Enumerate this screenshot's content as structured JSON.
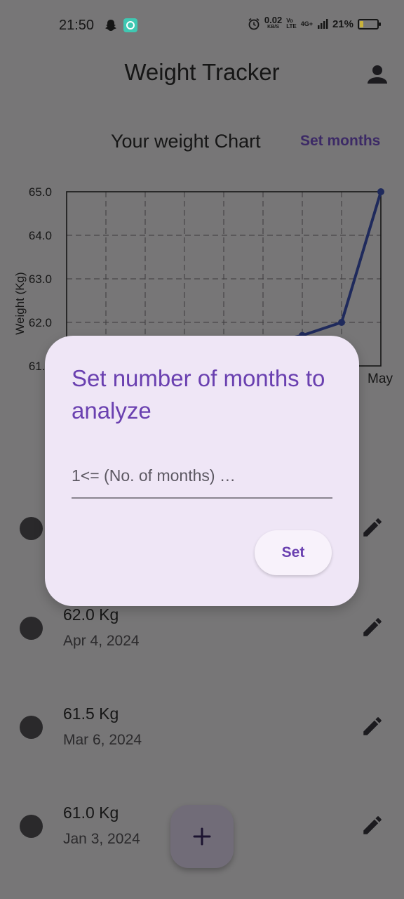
{
  "status_bar": {
    "time": "21:50",
    "data_speed": "0.02",
    "data_speed_unit": "KB/S",
    "volte_top": "Vo",
    "volte_bottom": "LTE",
    "network": "4G+",
    "battery": "21%",
    "battery_level": 0.21,
    "icons": [
      "snapchat-icon",
      "app-notification-icon",
      "alarm-icon",
      "signal-icon",
      "battery-icon"
    ]
  },
  "app_bar": {
    "title": "Weight Tracker",
    "account_icon": "account-icon"
  },
  "chart_header": {
    "title": "Your weight Chart",
    "action": "Set months"
  },
  "chart_data": {
    "type": "line",
    "ylabel": "Weight (Kg)",
    "y_ticks": [
      "65.0",
      "64.0",
      "63.0",
      "62.0",
      "61.0"
    ],
    "ylim": [
      61.0,
      65.0
    ],
    "x_tick_visible": "May",
    "grid": true,
    "line_color": "#1f2a5c",
    "series": [
      {
        "x": [
          5,
          6,
          7,
          8
        ],
        "values": [
          61.5,
          61.7,
          62.0,
          65.0
        ]
      }
    ]
  },
  "entries": [
    {
      "weight": "",
      "date": ""
    },
    {
      "weight": "62.0 Kg",
      "date": "Apr 4, 2024"
    },
    {
      "weight": "61.5 Kg",
      "date": "Mar 6, 2024"
    },
    {
      "weight": "61.0 Kg",
      "date": "Jan 3, 2024"
    }
  ],
  "fab": {
    "icon": "plus-icon"
  },
  "dialog": {
    "title": "Set number of months to analyze",
    "input_placeholder": "1<= (No. of months) …",
    "input_value": "",
    "button": "Set"
  },
  "colors": {
    "scrim_background": "#777677",
    "dialog_background": "#efe6f6",
    "accent": "#6a40b0",
    "chart_line": "#1f2a5c"
  }
}
